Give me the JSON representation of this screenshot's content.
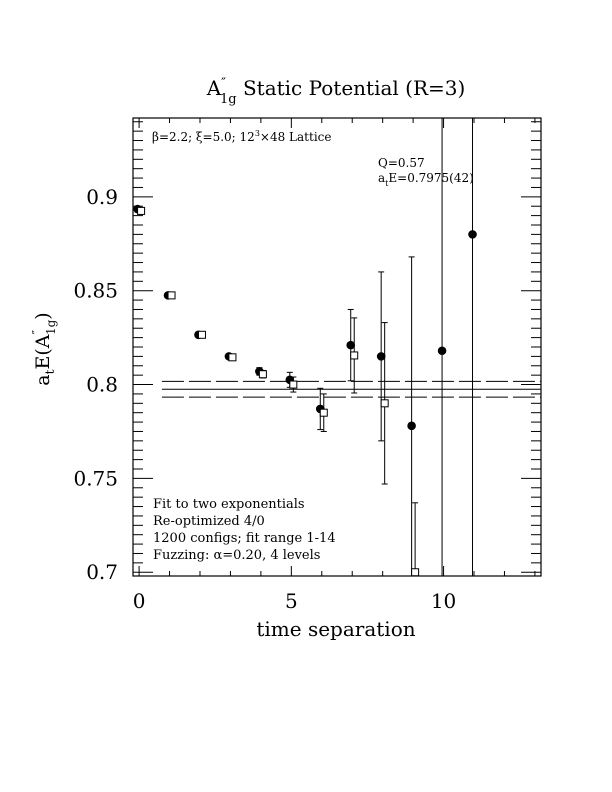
{
  "chart_data": {
    "type": "scatter",
    "title_main": "A",
    "title_prime": "″",
    "title_sub": "1g",
    "title_rest": " Static Potential (R=3)",
    "subtitle_pre": "β=2.2; ξ=5.0; 12",
    "subtitle_sup": "3",
    "subtitle_post": "×48 Lattice",
    "xlabel": "time separation",
    "ylabel_pre": "a",
    "ylabel_t": "t",
    "ylabel_mid": "E(A",
    "ylabel_prime": "″",
    "ylabel_sub": "1g",
    "ylabel_post": ")",
    "xlim": [
      -0.2,
      13.2
    ],
    "ylim": [
      0.698,
      0.942
    ],
    "x_ticks": [
      0,
      5,
      10
    ],
    "x_tick_labels": [
      "0",
      "5",
      "10"
    ],
    "y_ticks": [
      0.7,
      0.75,
      0.8,
      0.85,
      0.9
    ],
    "y_tick_labels": [
      "0.7",
      "0.75",
      "0.8",
      "0.85",
      "0.9"
    ],
    "fit": {
      "center": 0.7975,
      "upper": 0.8017,
      "lower": 0.7933,
      "x_range": [
        1,
        14
      ]
    },
    "fit_text": {
      "q": "Q=0.57",
      "e_pre": "a",
      "e_sub": "t",
      "e_post": "E=0.7975(42)"
    },
    "info_lines": [
      "Fit to two exponentials",
      "Re-optimized 4/0",
      "1200 configs; fit range 1-14",
      "Fuzzing: α=0.20, 4 levels"
    ],
    "series": [
      {
        "marker": "filled-circle",
        "points": [
          {
            "x": 0,
            "y": 0.8935,
            "err": 0.0008
          },
          {
            "x": 1,
            "y": 0.8475,
            "err": 0.0008
          },
          {
            "x": 2,
            "y": 0.8265,
            "err": 0.0008
          },
          {
            "x": 3,
            "y": 0.815,
            "err": 0.001
          },
          {
            "x": 4,
            "y": 0.807,
            "err": 0.002
          },
          {
            "x": 5,
            "y": 0.8025,
            "err": 0.004
          },
          {
            "x": 6,
            "y": 0.787,
            "err": 0.011
          },
          {
            "x": 7,
            "y": 0.821,
            "err": 0.019
          },
          {
            "x": 8,
            "y": 0.815,
            "err": 0.045
          },
          {
            "x": 9,
            "y": 0.778,
            "err": 0.09
          },
          {
            "x": 10,
            "y": 0.818,
            "err": 0.145
          },
          {
            "x": 11,
            "y": 0.88,
            "err": 0.25
          }
        ]
      },
      {
        "marker": "open-square",
        "points": [
          {
            "x": 0,
            "y": 0.8925,
            "err": 0.0008
          },
          {
            "x": 1,
            "y": 0.8475,
            "err": 0.0008
          },
          {
            "x": 2,
            "y": 0.8265,
            "err": 0.0008
          },
          {
            "x": 3,
            "y": 0.8145,
            "err": 0.001
          },
          {
            "x": 4,
            "y": 0.8055,
            "err": 0.002
          },
          {
            "x": 5,
            "y": 0.8,
            "err": 0.004
          },
          {
            "x": 6,
            "y": 0.785,
            "err": 0.01
          },
          {
            "x": 7,
            "y": 0.8155,
            "err": 0.02
          },
          {
            "x": 8,
            "y": 0.79,
            "err": 0.043
          },
          {
            "x": 9,
            "y": 0.7,
            "err": 0.037
          }
        ]
      }
    ]
  }
}
